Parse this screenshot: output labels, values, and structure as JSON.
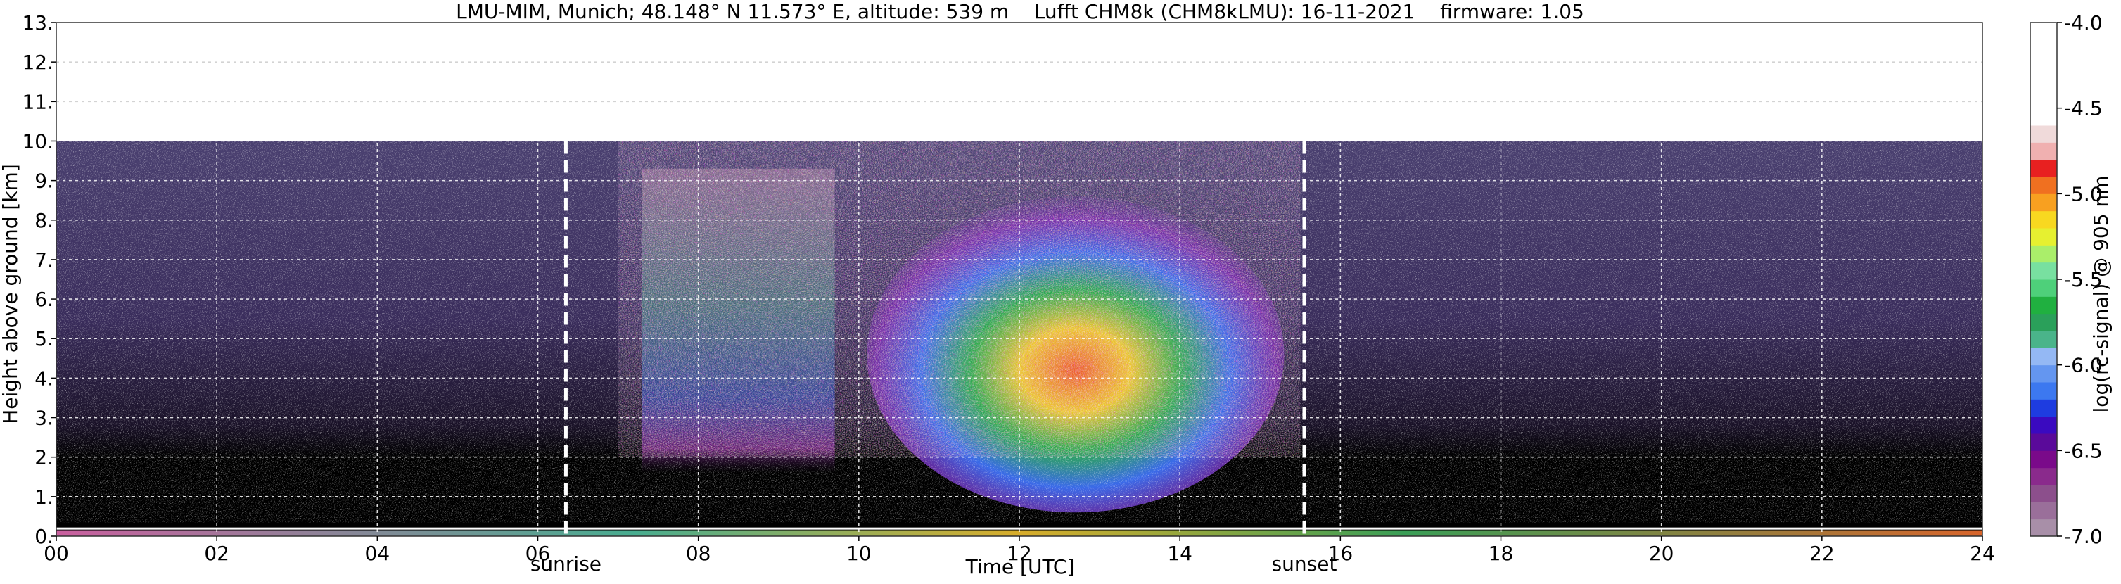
{
  "chart_data": {
    "type": "heatmap",
    "title": "LMU-MIM, Munich; 48.148° N 11.573° E, altitude: 539 m    Lufft CHM8k (CHM8kLMU): 16-11-2021    firmware: 1.05",
    "xlabel": "Time [UTC]",
    "ylabel": "Height above ground [km]",
    "xlim": [
      0,
      24
    ],
    "ylim": [
      0,
      13
    ],
    "x_ticks": [
      "00",
      "02",
      "04",
      "06",
      "08",
      "10",
      "12",
      "14",
      "16",
      "18",
      "20",
      "22",
      "24"
    ],
    "y_ticks": [
      "0.",
      "1.",
      "2.",
      "3.",
      "4.",
      "5.",
      "6.",
      "7.",
      "8.",
      "9.",
      "10.",
      "11.",
      "12.",
      "13."
    ],
    "grid": true,
    "data_top_km": 10,
    "annotations": [
      {
        "label": "sunrise",
        "time": 6.35
      },
      {
        "label": "sunset",
        "time": 15.55
      }
    ],
    "colorbar": {
      "label": "log(rc-signal) @ 905 nm",
      "range": [
        -7.0,
        -4.0
      ],
      "ticks": [
        "-4.0",
        "-4.5",
        "-5.0",
        "-5.5",
        "-6.0",
        "-6.5",
        "-7.0"
      ],
      "colors": [
        "#a88fa8",
        "#9a6f9a",
        "#8c4f8c",
        "#8a2a8c",
        "#7a0a8a",
        "#5a0a9a",
        "#3a0ac0",
        "#1e3ce0",
        "#3c78f0",
        "#6496f0",
        "#94b8f4",
        "#4ab48a",
        "#2aa05a",
        "#20b040",
        "#4ed07a",
        "#78e0a0",
        "#aaee6a",
        "#e6f030",
        "#f8d820",
        "#f8a020",
        "#f07020",
        "#e82020",
        "#f0b0b0",
        "#f0dada",
        "#ffffff",
        "#ffffff",
        "#ffffff",
        "#ffffff",
        "#ffffff",
        "#ffffff"
      ]
    }
  }
}
